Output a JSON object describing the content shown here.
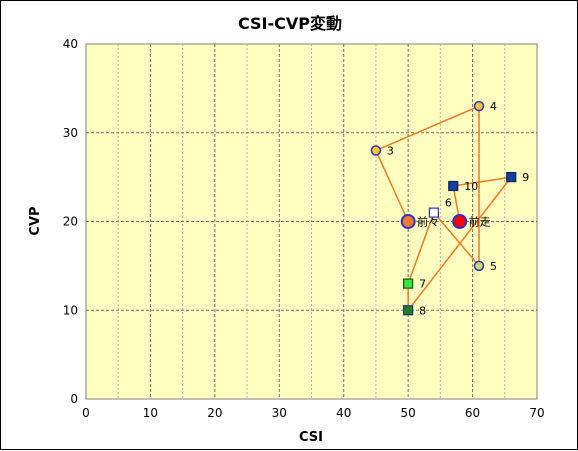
{
  "chart_data": {
    "type": "scatter",
    "title": "CSI-CVP変動",
    "xlabel": "CSI",
    "ylabel": "CVP",
    "xlim": [
      0,
      70
    ],
    "ylim": [
      0,
      40
    ],
    "xticks": [
      0,
      10,
      20,
      30,
      40,
      50,
      60,
      70
    ],
    "yticks": [
      0,
      10,
      20,
      30,
      40
    ],
    "grid": true,
    "plot_background": "#ffffc0",
    "line_color": "#f07820",
    "path_order": [
      "前々",
      "3",
      "4",
      "5",
      "6",
      "7",
      "8",
      "9",
      "10",
      "前走"
    ],
    "points": [
      {
        "label": "前々",
        "x": 50,
        "y": 20,
        "shape": "circle",
        "fill": "#f07830",
        "stroke": "#3030c0",
        "size": "large"
      },
      {
        "label": "前走",
        "x": 58,
        "y": 20,
        "shape": "circle",
        "fill": "#ff0000",
        "stroke": "#3030c0",
        "size": "large"
      },
      {
        "label": "3",
        "x": 45,
        "y": 28,
        "shape": "circle",
        "fill": "#ffc830",
        "stroke": "#3030c0",
        "size": "small"
      },
      {
        "label": "4",
        "x": 61,
        "y": 33,
        "shape": "circle",
        "fill": "#ffc830",
        "stroke": "#3030c0",
        "size": "small"
      },
      {
        "label": "5",
        "x": 61,
        "y": 15,
        "shape": "circle",
        "fill": "#c8e060",
        "stroke": "#3030c0",
        "size": "small"
      },
      {
        "label": "6",
        "x": 54,
        "y": 21,
        "shape": "square",
        "fill": "#ffffff",
        "stroke": "#3030c0",
        "size": "small"
      },
      {
        "label": "7",
        "x": 50,
        "y": 13,
        "shape": "square",
        "fill": "#40e040",
        "stroke": "#006000",
        "size": "small"
      },
      {
        "label": "8",
        "x": 50,
        "y": 10,
        "shape": "square",
        "fill": "#208020",
        "stroke": "#203090",
        "size": "small"
      },
      {
        "label": "9",
        "x": 66,
        "y": 25,
        "shape": "square",
        "fill": "#1040a0",
        "stroke": "#102060",
        "size": "small"
      },
      {
        "label": "10",
        "x": 57,
        "y": 24,
        "shape": "square",
        "fill": "#1040a0",
        "stroke": "#102060",
        "size": "small"
      }
    ]
  }
}
